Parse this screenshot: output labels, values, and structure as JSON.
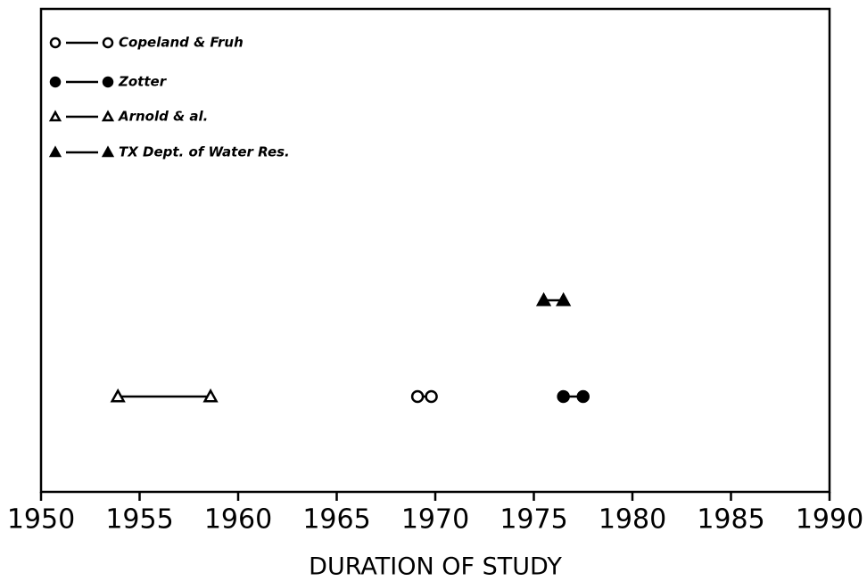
{
  "chart_data": {
    "type": "range",
    "x_label": "DURATION OF STUDY",
    "xlim": [
      1950,
      1990
    ],
    "xticks": [
      1950,
      1955,
      1960,
      1965,
      1970,
      1975,
      1980,
      1985,
      1990
    ],
    "series": [
      {
        "name": "Copeland & Fruh",
        "marker": "circle",
        "filled": false,
        "color": "#000000",
        "values": [
          1969.1,
          1969.8
        ]
      },
      {
        "name": "Zotter",
        "marker": "circle",
        "filled": true,
        "color": "#000000",
        "values": [
          1976.5,
          1977.5
        ]
      },
      {
        "name": "Arnold & al.",
        "marker": "triangle",
        "filled": false,
        "color": "#000000",
        "values": [
          1953.9,
          1958.6
        ]
      },
      {
        "name": "TX Dept. of Water Res.",
        "marker": "triangle",
        "filled": true,
        "color": "#000000",
        "values": [
          1975.5,
          1976.5
        ]
      }
    ]
  }
}
